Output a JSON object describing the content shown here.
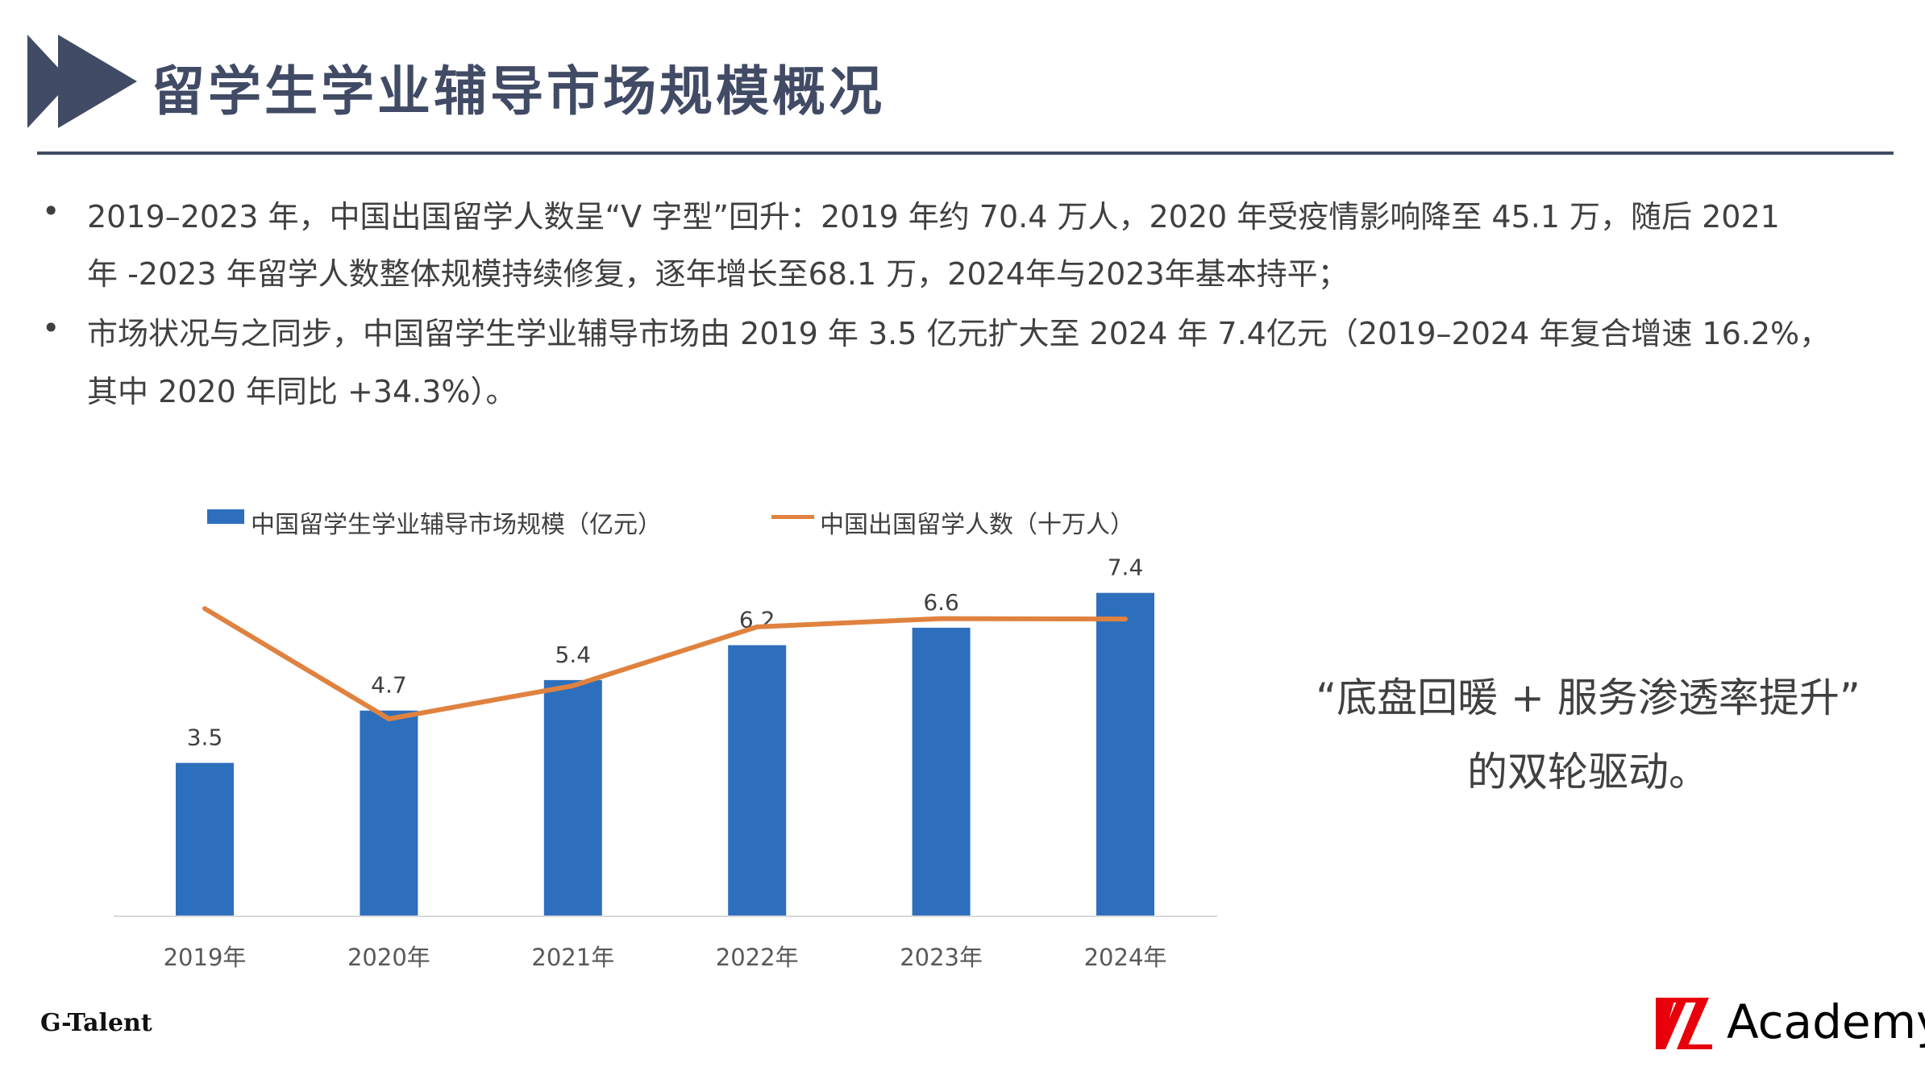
{
  "header": {
    "title": "留学生学业辅导市场规模概况",
    "icon": "double-arrow-icon",
    "color": "#414b65"
  },
  "bullets": [
    {
      "lines": [
        "2019–2023 年，中国出国留学人数呈“V 字型”回升：2019 年约 70.4 万人，2020 年受疫情影响降至 45.1 万，随后 2021",
        "年 -2023 年留学人数整体规模持续修复，逐年增长至68.1 万，2024年与2023年基本持平；"
      ]
    },
    {
      "lines": [
        "市场状况与之同步，中国留学生学业辅导市场由 2019 年 3.5 亿元扩大至 2024 年 7.4亿元（2019–2024 年复合增速 16.2%，",
        "其中 2020 年同比 +34.3%）。"
      ]
    }
  ],
  "bullet_symbol": "•",
  "chart_data": {
    "type": "bar+line",
    "categories": [
      "2019年",
      "2020年",
      "2021年",
      "2022年",
      "2023年",
      "2024年"
    ],
    "series": [
      {
        "name": "中国留学生学业辅导市场规模（亿元）",
        "type": "bar",
        "color": "#2e6fbd",
        "values": [
          3.5,
          4.7,
          5.4,
          6.2,
          6.6,
          7.4
        ],
        "labels": [
          "3.5",
          "4.7",
          "5.4",
          "6.2",
          "6.6",
          "7.4"
        ]
      },
      {
        "name": "中国出国留学人数（十万人）",
        "type": "line",
        "color": "#e0823f",
        "values": [
          7.04,
          4.51,
          5.27,
          6.62,
          6.81,
          6.8
        ]
      }
    ],
    "ylim": [
      0,
      8
    ],
    "grid": false,
    "legend": "top"
  },
  "quote": {
    "line1": "“底盘回暖 + 服务渗透率提升”",
    "line2": "的双轮驱动。"
  },
  "footer": {
    "left_logo": "G-Talent",
    "right_logo": "Academy",
    "right_logo_color": "#e8000b"
  }
}
